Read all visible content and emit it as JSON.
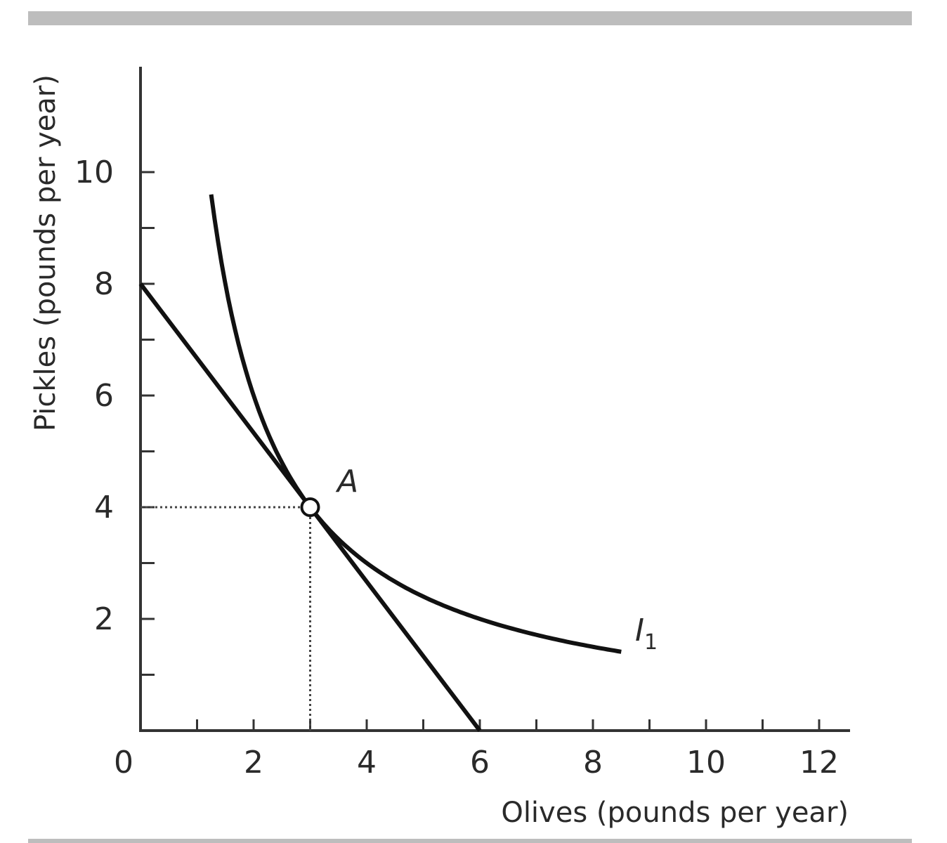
{
  "chart_data": {
    "type": "line",
    "xlabel": "Olives (pounds per year)",
    "ylabel": "Pickles (pounds per year)",
    "xlim": [
      0,
      13
    ],
    "ylim": [
      0,
      12
    ],
    "x_ticks_major": [
      0,
      2,
      4,
      6,
      8,
      10,
      12
    ],
    "x_ticks_minor": [
      1,
      3,
      5,
      7,
      9,
      11
    ],
    "y_ticks_major": [
      2,
      4,
      6,
      8,
      10
    ],
    "y_ticks_minor": [
      1,
      3,
      5,
      7,
      9
    ],
    "grid": false,
    "series": [
      {
        "name": "",
        "kind": "budget_line",
        "points": [
          [
            0,
            8
          ],
          [
            6,
            0
          ]
        ]
      },
      {
        "name": "I1",
        "kind": "indifference_curve",
        "formula": "y = 12 / x",
        "x_range": [
          1.25,
          8.5
        ]
      }
    ],
    "annotations": [
      {
        "label": "A",
        "point": [
          3,
          4
        ],
        "marker": "open-circle",
        "guides": "dotted"
      },
      {
        "label": "I",
        "subscript": "1",
        "point": [
          8.9,
          1.6
        ]
      }
    ],
    "colors": {
      "line": "#111111",
      "frame": "#bdbdbd",
      "text": "#2a2a2a"
    }
  }
}
